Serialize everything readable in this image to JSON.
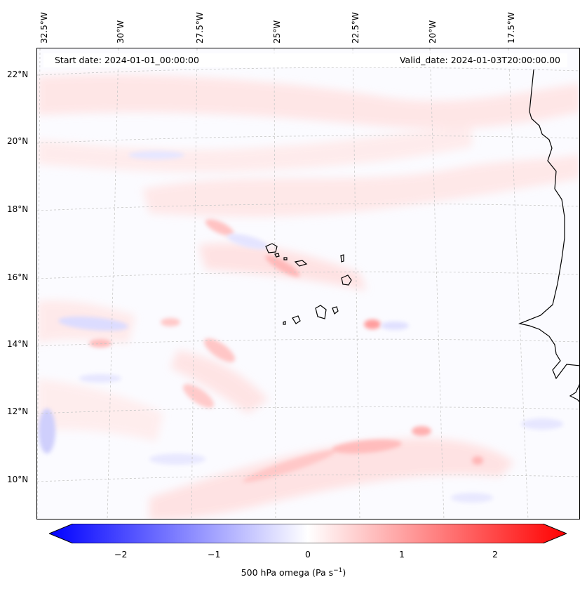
{
  "map": {
    "start_date": "Start date: 2024-01-01_00:00:00",
    "valid_date": "Valid_date: 2024-01-03T20:00:00.00",
    "longitude_labels": [
      "32.5°W",
      "30°W",
      "27.5°W",
      "25°W",
      "22.5°W",
      "20°W",
      "17.5°W"
    ],
    "latitude_labels": [
      "22°N",
      "20°N",
      "18°N",
      "16°N",
      "14°N",
      "12°N",
      "10°N"
    ],
    "field": "500 hPa omega"
  },
  "colorbar": {
    "label": "500 hPa omega (Pa s",
    "label_superscript": "−1",
    "label_close": ")",
    "ticks": [
      "−2",
      "−1",
      "0",
      "1",
      "2"
    ],
    "range": [
      -2.75,
      2.75
    ],
    "low_color": "#0000ff",
    "mid_color": "#ffffff",
    "high_color": "#ff0000"
  }
}
